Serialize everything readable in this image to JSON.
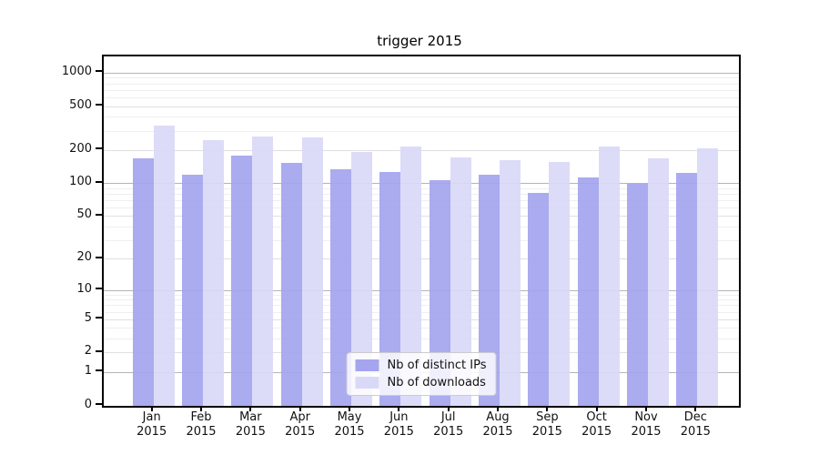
{
  "title": "trigger 2015",
  "chart_data": {
    "type": "bar",
    "title": "trigger 2015",
    "x_year_label": "2015",
    "months": [
      "Jan",
      "Feb",
      "Mar",
      "Apr",
      "May",
      "Jun",
      "Jul",
      "Aug",
      "Sep",
      "Oct",
      "Nov",
      "Dec"
    ],
    "categories": [
      "Jan 2015",
      "Feb 2015",
      "Mar 2015",
      "Apr 2015",
      "May 2015",
      "Jun 2015",
      "Jul 2015",
      "Aug 2015",
      "Sep 2015",
      "Oct 2015",
      "Nov 2015",
      "Dec 2015"
    ],
    "series": [
      {
        "name": "Nb of distinct IPs",
        "color": "#a4a4ef",
        "values": [
          170,
          120,
          180,
          155,
          135,
          128,
          108,
          120,
          83,
          113,
          100,
          126
        ]
      },
      {
        "name": "Nb of downloads",
        "color": "#d9d9f7",
        "values": [
          336,
          247,
          268,
          261,
          195,
          219,
          172,
          163,
          157,
          219,
          170,
          208
        ]
      }
    ],
    "y_axis": {
      "scale": "log1p",
      "ylim": [
        0,
        1417
      ],
      "tick_values": [
        0,
        1,
        2,
        5,
        10,
        20,
        50,
        100,
        200,
        500,
        1000
      ],
      "tick_labels": [
        "0",
        "1",
        "2",
        "5",
        "10",
        "20",
        "50",
        "100",
        "200",
        "500",
        "1000"
      ],
      "major_gridlines": [
        1,
        10,
        100,
        1000
      ],
      "minor_gridlines_labeled": [
        2,
        5,
        20,
        50,
        200,
        500
      ],
      "minor_gridlines": [
        3,
        4,
        6,
        7,
        8,
        9,
        30,
        40,
        60,
        70,
        80,
        90,
        300,
        400,
        600,
        700,
        800,
        900
      ],
      "grid": true
    },
    "legend": {
      "position": "lower center",
      "entries": [
        "Nb of distinct IPs",
        "Nb of downloads"
      ]
    }
  }
}
